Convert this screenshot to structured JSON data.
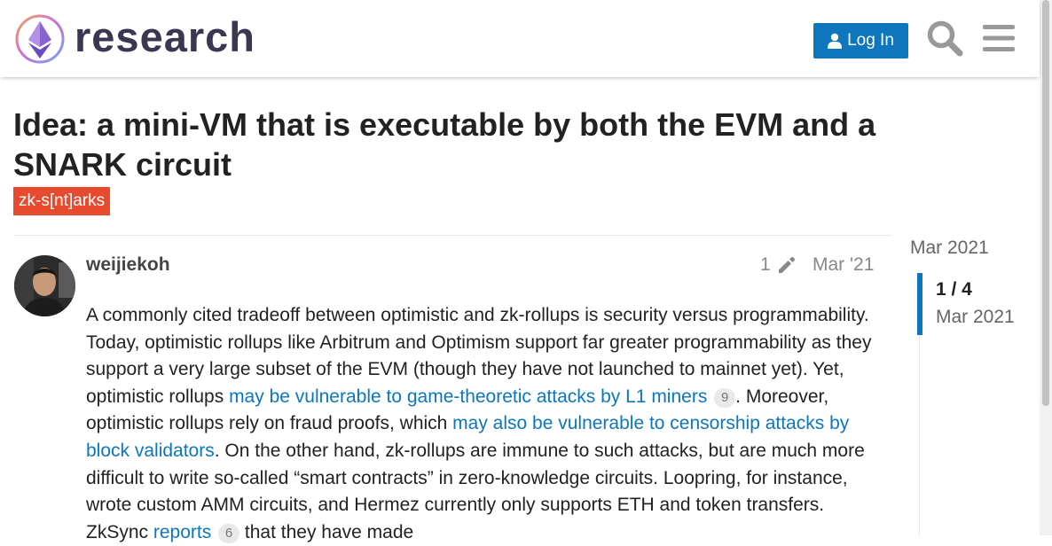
{
  "header": {
    "brand": "research",
    "login_label": "Log In",
    "icons": {
      "logo": "ethereum-diamond-logo",
      "login": "user-icon",
      "search": "search-icon",
      "menu": "hamburger-menu-icon"
    },
    "colors": {
      "primary": "#0e76bd",
      "brand_text": "#3a3753"
    }
  },
  "topic": {
    "title": "Idea: a mini-VM that is executable by both the EVM and a SNARK circuit",
    "category": {
      "label": "zk-s[nt]arks",
      "color": "#e84a2d"
    }
  },
  "post": {
    "username": "weijiekoh",
    "edit_count": "1",
    "edit_icon": "pencil-icon",
    "date": "Mar '21",
    "body": {
      "t1": "A commonly cited tradeoff between optimistic and zk-rollups is security versus programmability. Today, optimistic rollups like Arbitrum and Optimism support far greater programmability as they support a very large subset of the EVM (though they have not launched to mainnet yet). Yet, optimistic rollups ",
      "link1": "may be vulnerable to game-theoretic attacks by L1 miners",
      "clicks1": "9",
      "t2": ". Moreover, optimistic rollups rely on fraud proofs, which ",
      "link2": "may also be vulnerable to censorship attacks by block validators",
      "t3": ". On the other hand, zk-rollups are immune to such attacks, but are much more difficult to write so-called “smart contracts” in zero-knowledge circuits. Loopring, for instance, wrote custom AMM circuits, and Hermez currently only supports ETH and token transfers. ZkSync ",
      "link3": "reports",
      "clicks3": "6",
      "t4": " that they have made"
    }
  },
  "timeline": {
    "top_date": "Mar 2021",
    "position": "1 / 4",
    "current_date": "Mar 2021"
  }
}
